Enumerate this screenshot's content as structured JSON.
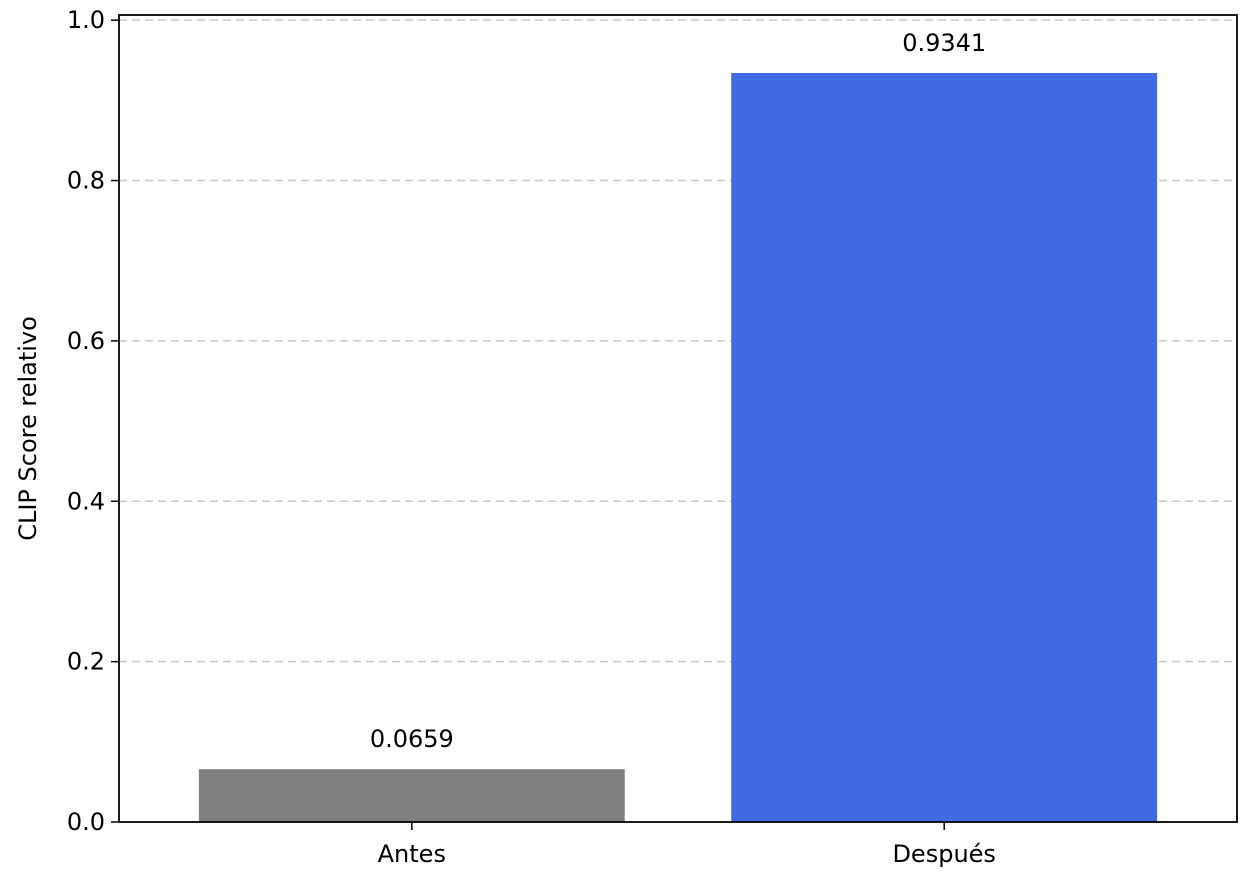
{
  "chart_data": {
    "type": "bar",
    "title": "",
    "ylabel": "CLIP Score relativo",
    "xlabel": "",
    "categories": [
      "Antes",
      "Después"
    ],
    "values": [
      0.0659,
      0.9341
    ],
    "data_labels": [
      "0.0659",
      "0.9341"
    ],
    "bar_colors": [
      "#808080",
      "#4169e1"
    ],
    "ylim": [
      0.0,
      1.1
    ],
    "yticks": [
      {
        "value": 0.0,
        "label": "0.0"
      },
      {
        "value": 0.2,
        "label": "0.2"
      },
      {
        "value": 0.4,
        "label": "0.4"
      },
      {
        "value": 0.6,
        "label": "0.6"
      },
      {
        "value": 0.8,
        "label": "0.8"
      },
      {
        "value": 1.0,
        "label": "1.0"
      }
    ],
    "grid": "y-dashed",
    "legend": "none"
  }
}
